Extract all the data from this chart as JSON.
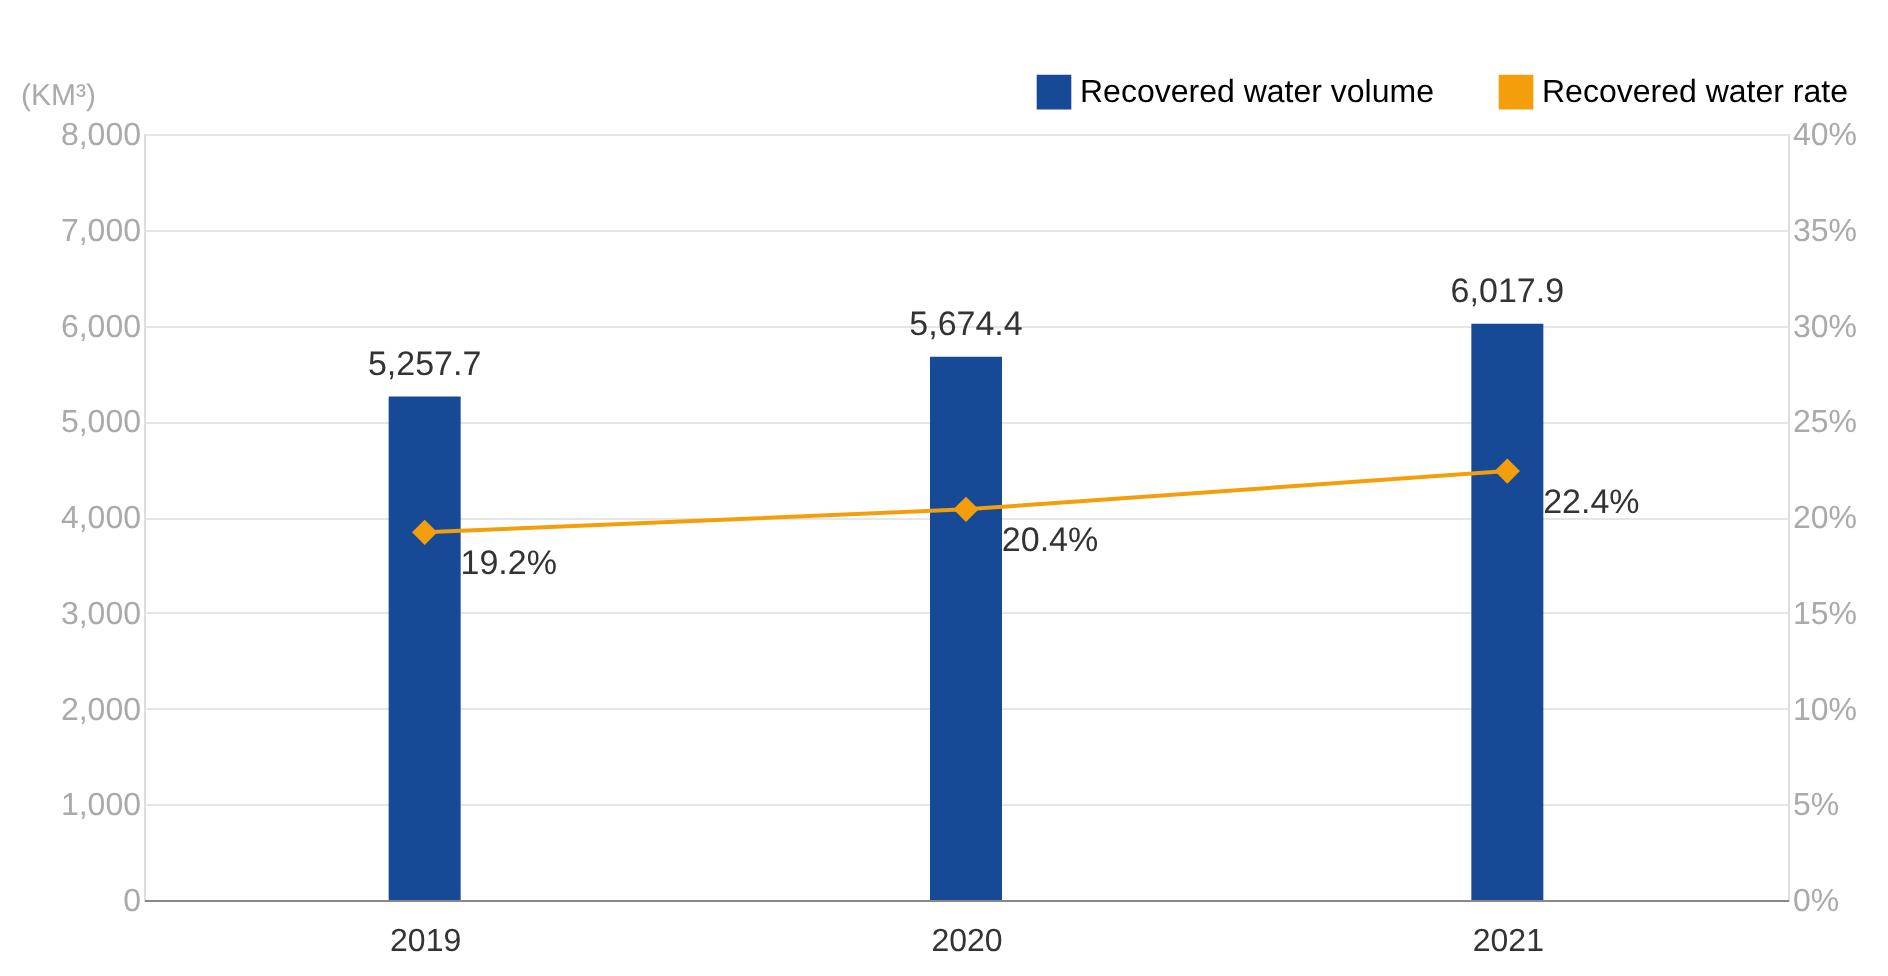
{
  "chart_data": {
    "type": "bar",
    "ylabel": "(KM³)",
    "categories": [
      "2019",
      "2020",
      "2021"
    ],
    "series": [
      {
        "name": "Recovered water volume",
        "color": "#174a96",
        "values": [
          5257.7,
          5674.4,
          6017.9
        ]
      },
      {
        "name": "Recovered water rate",
        "type": "line",
        "axis": "y2",
        "color": "#f59e0b",
        "marker": "diamond",
        "values": [
          19.2,
          20.4,
          22.4
        ],
        "value_labels": [
          "19.2%",
          "20.4%",
          "22.4%"
        ]
      }
    ],
    "ylim": [
      0,
      8000
    ],
    "yticks": [
      {
        "value": 0,
        "label": "0"
      },
      {
        "value": 1000,
        "label": "1,000"
      },
      {
        "value": 2000,
        "label": "2,000"
      },
      {
        "value": 3000,
        "label": "3,000"
      },
      {
        "value": 4000,
        "label": "4,000"
      },
      {
        "value": 5000,
        "label": "5,000"
      },
      {
        "value": 6000,
        "label": "6,000"
      },
      {
        "value": 7000,
        "label": "7,000"
      },
      {
        "value": 8000,
        "label": "8,000"
      }
    ],
    "y2lim": [
      0,
      40
    ],
    "y2ticks": [
      {
        "value": 0,
        "label": "0%"
      },
      {
        "value": 5,
        "label": "5%"
      },
      {
        "value": 10,
        "label": "10%"
      },
      {
        "value": 15,
        "label": "15%"
      },
      {
        "value": 20,
        "label": "20%"
      },
      {
        "value": 25,
        "label": "25%"
      },
      {
        "value": 30,
        "label": "30%"
      },
      {
        "value": 35,
        "label": "35%"
      },
      {
        "value": 40,
        "label": "40%"
      }
    ],
    "value_labels": [
      "5,257.7",
      "5,674.4",
      "6,017.9"
    ],
    "grid": "y",
    "legend": "top right"
  }
}
